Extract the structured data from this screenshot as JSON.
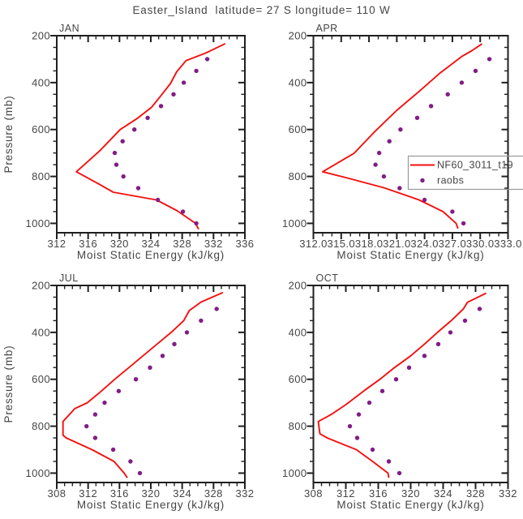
{
  "title": "Easter_Island  latitude= 27 S longitude= 110 W",
  "colors": {
    "model_line": "#f50f0f",
    "raobs_dot": "#821c87",
    "text": "#454545",
    "frame": "#1f1f1f",
    "legend_border": "#9a9a9a",
    "background": "#ffffff"
  },
  "legend": {
    "line_label": "NF60_3011_t19",
    "dot_label": "raobs",
    "legend_panel": "APR",
    "position": "inside-right"
  },
  "y_axis": {
    "label": "Pressure (mb)",
    "min": 200,
    "max": 1040,
    "ticks": [
      200,
      400,
      600,
      800,
      1000
    ],
    "minor_step": 50,
    "direction": "reversed-downward"
  },
  "x_axis_label": "Moist Static Energy (kJ/kg)",
  "chart_data": [
    {
      "type": "line",
      "label": "JAN",
      "x_min": 312,
      "x_max": 336,
      "x_tick_labels": [
        "312",
        "316",
        "320",
        "324",
        "328",
        "332",
        "336"
      ],
      "x_minor_step": 1,
      "xlabel": "Moist Static Energy (kJ/kg)",
      "grid": false,
      "model_line_points": [
        [
          330.1,
          1025
        ],
        [
          329.7,
          1000
        ],
        [
          327.3,
          945
        ],
        [
          324.7,
          900
        ],
        [
          319.2,
          867
        ],
        [
          317.4,
          833
        ],
        [
          314.5,
          780
        ],
        [
          317.5,
          690
        ],
        [
          320.1,
          600
        ],
        [
          322.3,
          552
        ],
        [
          324.1,
          505
        ],
        [
          325.3,
          455
        ],
        [
          326.5,
          404
        ],
        [
          327.3,
          354
        ],
        [
          328.5,
          306
        ],
        [
          331.0,
          274
        ],
        [
          333.5,
          234
        ]
      ],
      "raobs_pressures": [
        1000,
        950,
        900,
        850,
        800,
        750,
        700,
        650,
        600,
        550,
        500,
        450,
        400,
        350,
        300
      ],
      "raobs_values": [
        329.8,
        328.1,
        324.9,
        322.4,
        320.5,
        319.6,
        319.4,
        320.4,
        321.9,
        323.6,
        325.3,
        326.9,
        328.2,
        329.8,
        331.2
      ]
    },
    {
      "type": "line",
      "label": "APR",
      "x_min": 312,
      "x_max": 333,
      "x_tick_labels": [
        "312.0",
        "315.0",
        "318.0",
        "321.0",
        "324.0",
        "327.0",
        "330.0",
        "333.0"
      ],
      "x_minor_step": 1,
      "xlabel": "Moist Static Energy (kJ/kg)",
      "grid": false,
      "model_line_points": [
        [
          327.6,
          1022
        ],
        [
          327.4,
          1000
        ],
        [
          326.0,
          950
        ],
        [
          323.4,
          900
        ],
        [
          319.6,
          848
        ],
        [
          315.5,
          805
        ],
        [
          313.0,
          780
        ],
        [
          316.4,
          701
        ],
        [
          318.6,
          610
        ],
        [
          321.0,
          518
        ],
        [
          323.4,
          438
        ],
        [
          325.7,
          358
        ],
        [
          328.0,
          289
        ],
        [
          329.1,
          264
        ],
        [
          330.2,
          235
        ]
      ],
      "raobs_pressures": [
        1000,
        950,
        900,
        850,
        800,
        750,
        700,
        650,
        600,
        550,
        500,
        450,
        400,
        350,
        300
      ],
      "raobs_values": [
        328.2,
        327.0,
        324.0,
        321.3,
        319.6,
        318.7,
        319.1,
        320.2,
        321.4,
        323.2,
        324.7,
        326.5,
        328.0,
        329.5,
        331.0
      ]
    },
    {
      "type": "line",
      "label": "JUL",
      "x_min": 308,
      "x_max": 332,
      "x_tick_labels": [
        "308",
        "312",
        "316",
        "320",
        "324",
        "328",
        "332"
      ],
      "x_minor_step": 1,
      "xlabel": "Moist Static Energy (kJ/kg)",
      "grid": false,
      "model_line_points": [
        [
          317.0,
          1020
        ],
        [
          316.6,
          1000
        ],
        [
          315.3,
          950
        ],
        [
          312.5,
          900
        ],
        [
          309.2,
          850
        ],
        [
          308.8,
          838
        ],
        [
          308.8,
          780
        ],
        [
          310.3,
          725
        ],
        [
          311.9,
          700
        ],
        [
          313.7,
          650
        ],
        [
          315.4,
          600
        ],
        [
          317.2,
          550
        ],
        [
          319.0,
          500
        ],
        [
          320.8,
          450
        ],
        [
          322.6,
          400
        ],
        [
          324.2,
          350
        ],
        [
          324.9,
          307
        ],
        [
          326.4,
          271
        ],
        [
          329.2,
          230
        ]
      ],
      "raobs_pressures": [
        1000,
        950,
        900,
        850,
        800,
        750,
        700,
        650,
        600,
        550,
        500,
        450,
        400,
        350,
        300
      ],
      "raobs_values": [
        318.6,
        317.4,
        315.2,
        312.9,
        311.8,
        312.9,
        314.1,
        315.9,
        318.1,
        319.9,
        321.5,
        323.0,
        324.6,
        326.4,
        328.4
      ]
    },
    {
      "type": "line",
      "label": "OCT",
      "x_min": 308,
      "x_max": 332,
      "x_tick_labels": [
        "308",
        "312",
        "316",
        "320",
        "324",
        "328",
        "332"
      ],
      "x_minor_step": 1,
      "xlabel": "Moist Static Energy (kJ/kg)",
      "grid": false,
      "model_line_points": [
        [
          317.3,
          1020
        ],
        [
          317.2,
          1000
        ],
        [
          315.3,
          950
        ],
        [
          313.3,
          900
        ],
        [
          309.7,
          850
        ],
        [
          308.8,
          832
        ],
        [
          308.6,
          780
        ],
        [
          310.2,
          750
        ],
        [
          312.0,
          708
        ],
        [
          314.2,
          650
        ],
        [
          316.2,
          600
        ],
        [
          318.0,
          550
        ],
        [
          320.0,
          500
        ],
        [
          321.7,
          450
        ],
        [
          323.3,
          400
        ],
        [
          325.0,
          350
        ],
        [
          326.5,
          300
        ],
        [
          327.0,
          272
        ],
        [
          329.3,
          233
        ]
      ],
      "raobs_pressures": [
        1000,
        950,
        900,
        850,
        800,
        750,
        700,
        650,
        600,
        550,
        500,
        450,
        400,
        350,
        300
      ],
      "raobs_values": [
        318.6,
        317.3,
        315.3,
        313.4,
        312.5,
        313.6,
        314.9,
        316.5,
        318.2,
        319.8,
        321.7,
        323.4,
        324.9,
        326.7,
        328.5
      ]
    }
  ]
}
